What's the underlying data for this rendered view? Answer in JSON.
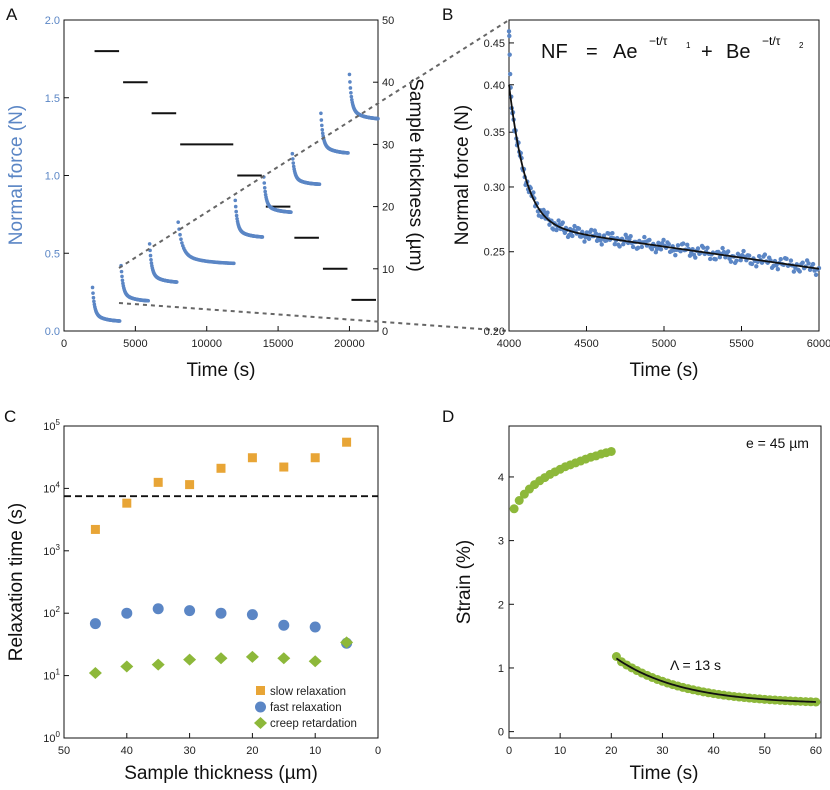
{
  "panels": {
    "A": "A",
    "B": "B",
    "C": "C",
    "D": "D"
  },
  "colors": {
    "blue": "#5b86c5",
    "orange": "#e8a536",
    "green": "#8db83a",
    "black": "#111111",
    "guide": "#666666"
  },
  "chart_data": [
    {
      "panel": "A",
      "type": "scatter",
      "xlabel": "Time (s)",
      "ylabel": "Normal force (N)",
      "y2label": "Sample thickness (µm)",
      "xlim": [
        0,
        22000
      ],
      "ylim": [
        0,
        2.0
      ],
      "y2lim": [
        0,
        50
      ],
      "xticks": [
        "0",
        "5000",
        "10000",
        "15000",
        "20000"
      ],
      "xtick_values": [
        0,
        5000,
        10000,
        15000,
        20000
      ],
      "yticks": [
        "0.0",
        "0.5",
        "1.0",
        "1.5",
        "2.0"
      ],
      "ytick_values": [
        0,
        0.5,
        1.0,
        1.5,
        2.0
      ],
      "y2ticks": [
        "0",
        "10",
        "20",
        "30",
        "40",
        "50"
      ],
      "y2tick_values": [
        0,
        10,
        20,
        30,
        40,
        50
      ],
      "relaxation_segments": [
        {
          "t_start": 2000,
          "t_end": 3900,
          "peak": 0.28,
          "plateau": 0.06
        },
        {
          "t_start": 4000,
          "t_end": 5900,
          "peak": 0.42,
          "plateau": 0.19
        },
        {
          "t_start": 6000,
          "t_end": 7900,
          "peak": 0.56,
          "plateau": 0.31
        },
        {
          "t_start": 8000,
          "t_end": 11900,
          "peak": 0.7,
          "plateau": 0.43
        },
        {
          "t_start": 12000,
          "t_end": 13900,
          "peak": 0.84,
          "plateau": 0.6
        },
        {
          "t_start": 14000,
          "t_end": 15900,
          "peak": 0.99,
          "plateau": 0.76
        },
        {
          "t_start": 16000,
          "t_end": 17900,
          "peak": 1.14,
          "plateau": 0.94
        },
        {
          "t_start": 18000,
          "t_end": 19900,
          "peak": 1.4,
          "plateau": 1.14
        },
        {
          "t_start": 20000,
          "t_end": 22000,
          "peak": 1.65,
          "plateau": 1.36
        }
      ],
      "thickness_steps": [
        {
          "t_start": 2000,
          "t_end": 4000,
          "thickness": 45
        },
        {
          "t_start": 4000,
          "t_end": 6000,
          "thickness": 40
        },
        {
          "t_start": 6000,
          "t_end": 8000,
          "thickness": 35
        },
        {
          "t_start": 8000,
          "t_end": 12000,
          "thickness": 30
        },
        {
          "t_start": 12000,
          "t_end": 14000,
          "thickness": 25
        },
        {
          "t_start": 14000,
          "t_end": 16000,
          "thickness": 20
        },
        {
          "t_start": 16000,
          "t_end": 18000,
          "thickness": 15
        },
        {
          "t_start": 18000,
          "t_end": 20000,
          "thickness": 10
        },
        {
          "t_start": 20000,
          "t_end": 22000,
          "thickness": 5
        }
      ]
    },
    {
      "panel": "B",
      "type": "scatter",
      "xlabel": "Time (s)",
      "ylabel": "Normal force (N)",
      "equation": {
        "lhs": "NF",
        "eq": "=",
        "term1": "Ae",
        "exp1": "−t/τ",
        "sub1": "1",
        "plus": "+",
        "term2": "Be",
        "exp2": "−t/τ",
        "sub2": "2"
      },
      "xlim": [
        4000,
        6000
      ],
      "ylim": [
        0.2,
        0.48
      ],
      "xticks": [
        "4000",
        "4500",
        "5000",
        "5500",
        "6000"
      ],
      "xtick_values": [
        4000,
        4500,
        5000,
        5500,
        6000
      ],
      "yticks": [
        "0.20",
        "0.25",
        "0.30",
        "0.35",
        "0.40",
        "0.45"
      ],
      "ytick_values": [
        0.2,
        0.25,
        0.3,
        0.35,
        0.4,
        0.45
      ],
      "data_peak": 0.465,
      "fit": {
        "A": 0.13,
        "tau1": 90,
        "B": 0.27,
        "tau2": 16000
      }
    },
    {
      "panel": "C",
      "type": "scatter",
      "xlabel": "Sample thickness (µm)",
      "ylabel": "Relaxation time (s)",
      "xlim": [
        50,
        0
      ],
      "ylog": true,
      "ylim_exp": [
        0,
        5
      ],
      "xticks": [
        "50",
        "40",
        "30",
        "20",
        "10",
        "0"
      ],
      "xtick_values": [
        50,
        40,
        30,
        20,
        10,
        0
      ],
      "ytick_exponents": [
        "0",
        "1",
        "2",
        "3",
        "4",
        "5"
      ],
      "ytick_base": "10",
      "hline": 7500,
      "series": [
        {
          "name": "slow relaxation",
          "marker": "square",
          "x": [
            45,
            40,
            35,
            30,
            25,
            20,
            15,
            10,
            5
          ],
          "y": [
            2200,
            5800,
            12500,
            11500,
            21000,
            31000,
            22000,
            31000,
            55000
          ]
        },
        {
          "name": "fast relaxation",
          "marker": "circle",
          "x": [
            45,
            40,
            35,
            30,
            25,
            20,
            15,
            10,
            5
          ],
          "y": [
            68,
            100,
            118,
            110,
            100,
            95,
            64,
            60,
            33
          ]
        },
        {
          "name": "creep retardation",
          "marker": "diamond",
          "x": [
            45,
            40,
            35,
            30,
            25,
            20,
            15,
            10,
            5
          ],
          "y": [
            11,
            14,
            15,
            18,
            19,
            20,
            19,
            17,
            34
          ]
        }
      ]
    },
    {
      "panel": "D",
      "type": "scatter",
      "xlabel": "Time (s)",
      "ylabel": "Strain (%)",
      "annotation_e": "e = 45 µm",
      "annotation_lambda": "Λ = 13 s",
      "xlim": [
        0,
        61
      ],
      "ylim": [
        -0.1,
        4.8
      ],
      "xticks": [
        "0",
        "10",
        "20",
        "30",
        "40",
        "50",
        "60"
      ],
      "xtick_values": [
        0,
        10,
        20,
        30,
        40,
        50,
        60
      ],
      "yticks": [
        "0",
        "1",
        "2",
        "3",
        "4"
      ],
      "ytick_values": [
        0,
        1,
        2,
        3,
        4
      ],
      "creep": {
        "t": [
          1,
          2,
          3,
          4,
          5,
          6,
          7,
          8,
          9,
          10,
          11,
          12,
          13,
          14,
          15,
          16,
          17,
          18,
          19,
          20
        ],
        "strain": [
          3.5,
          3.63,
          3.73,
          3.81,
          3.88,
          3.94,
          3.99,
          4.04,
          4.08,
          4.12,
          4.16,
          4.19,
          4.22,
          4.25,
          4.28,
          4.31,
          4.33,
          4.36,
          4.38,
          4.4
        ]
      },
      "recovery": {
        "t_start": 21,
        "t_end": 60,
        "start": 1.18,
        "end": 0.49
      },
      "fit": {
        "offset": 0.43,
        "amp": 0.72,
        "tau": 13,
        "t0": 21
      }
    }
  ]
}
